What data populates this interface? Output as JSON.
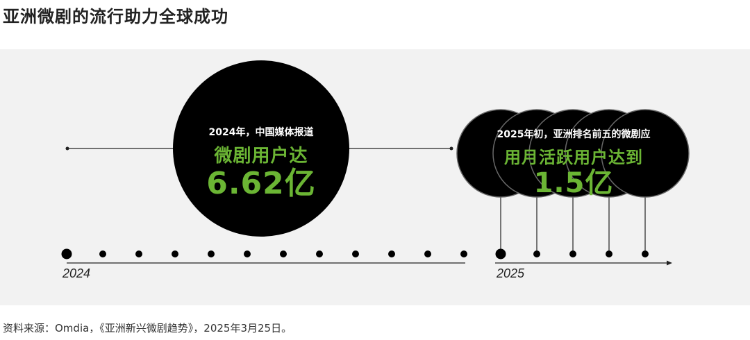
{
  "title": "亚洲微剧的流行助力全球成功",
  "timeline": {
    "start_year": "2024",
    "end_year": "2025"
  },
  "milestone_2024": {
    "line1": "2024年，中国媒体报道",
    "line2": "微剧用户达",
    "line3": "6.62亿"
  },
  "milestone_2025": {
    "line1": "2025年初，亚洲排名前五的微剧应",
    "line2": "用月活跃用户达到",
    "line3": "1.5亿"
  },
  "source": "资料来源：Omdia，《亚洲新兴微剧趋势》，2025年3月25日。",
  "colors": {
    "accent_green": "#6bb534",
    "circle_black": "#000000",
    "panel_bg": "#f2f2f2"
  }
}
